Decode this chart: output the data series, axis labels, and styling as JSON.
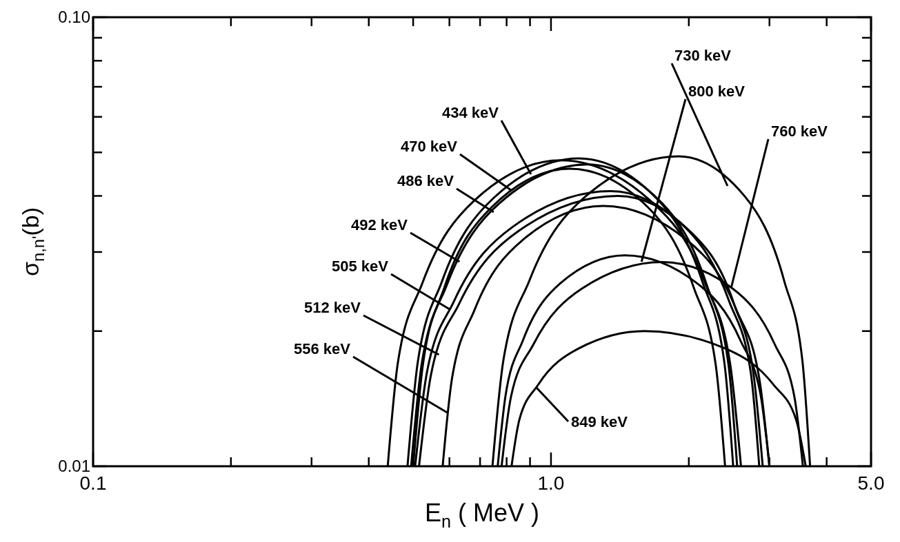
{
  "chart_data": {
    "type": "line",
    "xlabel": "E$_{n}$ ( MeV )",
    "ylabel": "σ$_{n,n'}$(b)",
    "log": "xy",
    "grid": false,
    "legend": false,
    "marker": "none",
    "line_style": "solid",
    "xlim": [
      0.1,
      5.0
    ],
    "xticks": [
      0.1,
      {
        "value": 0.2,
        "label": null
      },
      {
        "value": 0.3,
        "label": null
      },
      {
        "value": 0.4,
        "label": null
      },
      {
        "value": 0.5,
        "label": null
      },
      {
        "value": 0.6,
        "label": null
      },
      {
        "value": 0.7,
        "label": null
      },
      {
        "value": 0.8,
        "label": null
      },
      {
        "value": 0.9,
        "label": null
      },
      {
        "value": 1,
        "label": "1.0"
      },
      {
        "value": 2,
        "label": null
      },
      {
        "value": 3,
        "label": null
      },
      {
        "value": 4,
        "label": null
      },
      {
        "value": 5,
        "label": "5.0"
      }
    ],
    "ylim": [
      0.01,
      0.1
    ],
    "yticks": [
      0.01,
      {
        "value": 0.02,
        "label": null
      },
      {
        "value": 0.03,
        "label": null
      },
      {
        "value": 0.04,
        "label": null
      },
      {
        "value": 0.05,
        "label": null
      },
      {
        "value": 0.06,
        "label": null
      },
      {
        "value": 0.07,
        "label": null
      },
      {
        "value": 0.08,
        "label": null
      },
      {
        "value": 0.09,
        "label": null
      },
      {
        "value": 0.1,
        "label": "0.10"
      }
    ],
    "series": [
      {
        "name": "434 keV",
        "color": "#000000",
        "x": [
          0.44,
          0.463,
          0.524,
          0.679,
          1.05,
          1.65,
          2.17,
          2.46,
          2.6
        ],
        "values": [
          0.01,
          0.017,
          0.0256,
          0.039,
          0.048,
          0.039,
          0.0256,
          0.017,
          0.01
        ]
      },
      {
        "name": "470 keV",
        "color": "#000000",
        "x": [
          0.486,
          0.512,
          0.578,
          0.748,
          1.15,
          1.7,
          2.14,
          2.39,
          2.5
        ],
        "values": [
          0.01,
          0.0171,
          0.0258,
          0.0395,
          0.0485,
          0.0395,
          0.0258,
          0.0171,
          0.01
        ]
      },
      {
        "name": "486 keV",
        "color": "#000000",
        "x": [
          0.495,
          0.522,
          0.592,
          0.771,
          1.2,
          1.75,
          2.19,
          2.44,
          2.55
        ],
        "values": [
          0.01,
          0.0169,
          0.0253,
          0.0385,
          0.047,
          0.0385,
          0.0253,
          0.0169,
          0.01
        ]
      },
      {
        "name": "492 keV",
        "color": "#000000",
        "x": [
          0.5,
          0.525,
          0.585,
          0.741,
          1.1,
          1.63,
          2.05,
          2.29,
          2.4
        ],
        "values": [
          0.01,
          0.0168,
          0.025,
          0.0377,
          0.046,
          0.0377,
          0.025,
          0.0168,
          0.01
        ]
      },
      {
        "name": "505 keV",
        "color": "#000000",
        "x": [
          0.505,
          0.536,
          0.614,
          0.824,
          1.35,
          1.96,
          2.45,
          2.73,
          2.85
        ],
        "values": [
          0.01,
          0.0162,
          0.0233,
          0.0341,
          0.041,
          0.0341,
          0.0233,
          0.0162,
          0.01
        ]
      },
      {
        "name": "512 keV",
        "color": "#000000",
        "x": [
          0.515,
          0.547,
          0.63,
          0.849,
          1.4,
          2.01,
          2.51,
          2.77,
          2.9
        ],
        "values": [
          0.01,
          0.016,
          0.023,
          0.0334,
          0.04,
          0.0334,
          0.023,
          0.016,
          0.01
        ]
      },
      {
        "name": "556 keV",
        "color": "#000000",
        "x": [
          0.58,
          0.608,
          0.681,
          0.867,
          1.3,
          1.98,
          2.54,
          2.85,
          3.0
        ],
        "values": [
          0.01,
          0.0157,
          0.0223,
          0.0319,
          0.038,
          0.0319,
          0.0223,
          0.0157,
          0.01
        ]
      },
      {
        "name": "730 keV",
        "color": "#000000",
        "x": [
          0.745,
          0.787,
          0.897,
          1.19,
          1.9,
          2.65,
          3.23,
          3.54,
          3.68
        ],
        "values": [
          0.01,
          0.0172,
          0.0259,
          0.0399,
          0.049,
          0.0399,
          0.0259,
          0.0172,
          0.01
        ]
      },
      {
        "name": "760 keV",
        "color": "#000000",
        "x": [
          0.78,
          0.818,
          0.916,
          1.17,
          1.75,
          2.49,
          3.08,
          3.4,
          3.55
        ],
        "values": [
          0.01,
          0.0143,
          0.0187,
          0.0249,
          0.0285,
          0.0249,
          0.0187,
          0.0143,
          0.01
        ]
      },
      {
        "name": "800 keV",
        "color": "#000000",
        "x": [
          0.765,
          0.796,
          0.869,
          1.05,
          1.45,
          2.08,
          2.59,
          2.87,
          3.0
        ],
        "values": [
          0.01,
          0.0144,
          0.0191,
          0.0256,
          0.0295,
          0.0256,
          0.0191,
          0.0144,
          0.01
        ]
      },
      {
        "name": "849 keV",
        "color": "#000000",
        "x": [
          0.82,
          0.853,
          0.938,
          1.15,
          1.6,
          2.4,
          3.06,
          3.43,
          3.6
        ],
        "values": [
          0.01,
          0.0127,
          0.0152,
          0.0183,
          0.02,
          0.0183,
          0.0152,
          0.0127,
          0.01
        ]
      }
    ]
  }
}
